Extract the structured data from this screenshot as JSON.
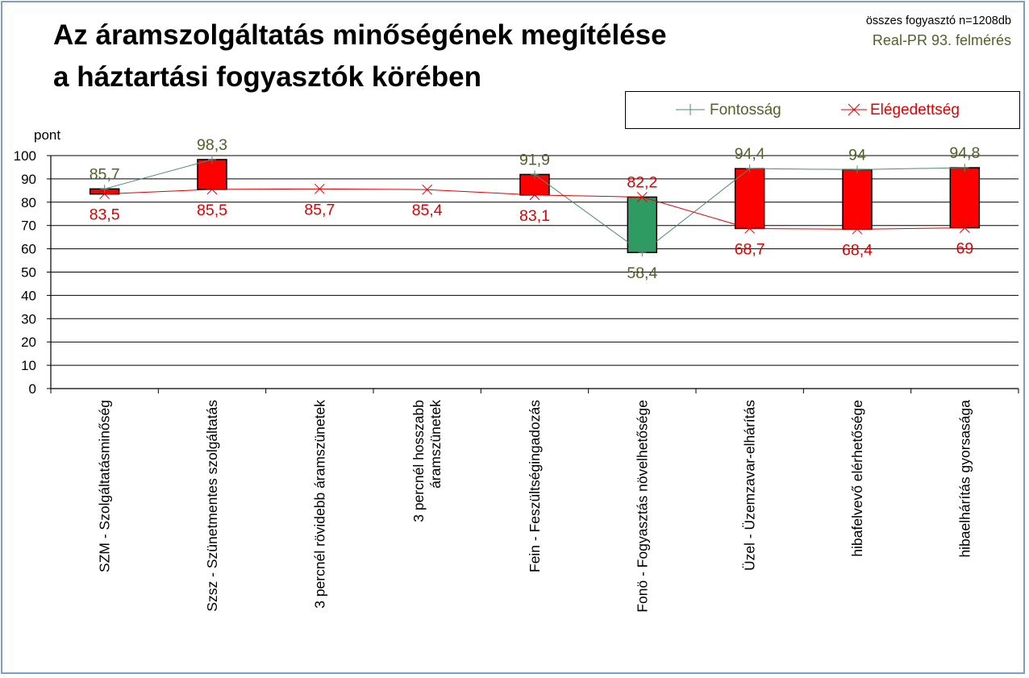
{
  "title": {
    "line1": "Az áramszolgáltatás minőségének megítélése",
    "line2": "a háztartási fogyasztók körében"
  },
  "notes": {
    "sample": "összes fogyasztó n=1208db",
    "survey": "Real-PR 93. felmérés"
  },
  "legend": {
    "importance": "Fontosság",
    "satisfaction": "Elégedettség"
  },
  "colors": {
    "importance": "#4f8a6a",
    "importance_label": "#4f6228",
    "satisfaction": "#e00000",
    "bar_up": "#ff0000",
    "bar_down": "#2e9b62",
    "grid": "#000000"
  },
  "chart_data": {
    "type": "line",
    "ylabel": "pont",
    "ylim": [
      0,
      100
    ],
    "yticks": [
      0,
      10,
      20,
      30,
      40,
      50,
      60,
      70,
      80,
      90,
      100
    ],
    "grid": true,
    "legend_position": "top-right",
    "categories": [
      "SZM - Szolgáltatásminőség",
      "Szsz - Szünetmentes szolgáltatás",
      "3 percnél rövidebb áramszünetek",
      "3 percnél hosszabb\náramszünetek",
      "Fein - Feszültségingadozás",
      "Fonö - Fogyasztás növelhetősége",
      "Üzel - Üzemzavar-elhárítás",
      "hibafelvevő elérhetősége",
      "hibaelhárítás gyorsasága"
    ],
    "series": [
      {
        "name": "Fontosság",
        "values": [
          85.7,
          98.3,
          null,
          null,
          91.9,
          58.4,
          94.4,
          94.0,
          94.8
        ],
        "labels": [
          "85,7",
          "98,3",
          "",
          "",
          "91,9",
          "58,4",
          "94,4",
          "94",
          "94,8"
        ]
      },
      {
        "name": "Elégedettség",
        "values": [
          83.5,
          85.5,
          85.7,
          85.4,
          83.1,
          82.2,
          68.7,
          68.4,
          69.0
        ],
        "labels": [
          "83,5",
          "85,5",
          "85,7",
          "85,4",
          "83,1",
          "82,2",
          "68,7",
          "68,4",
          "69"
        ]
      }
    ]
  }
}
